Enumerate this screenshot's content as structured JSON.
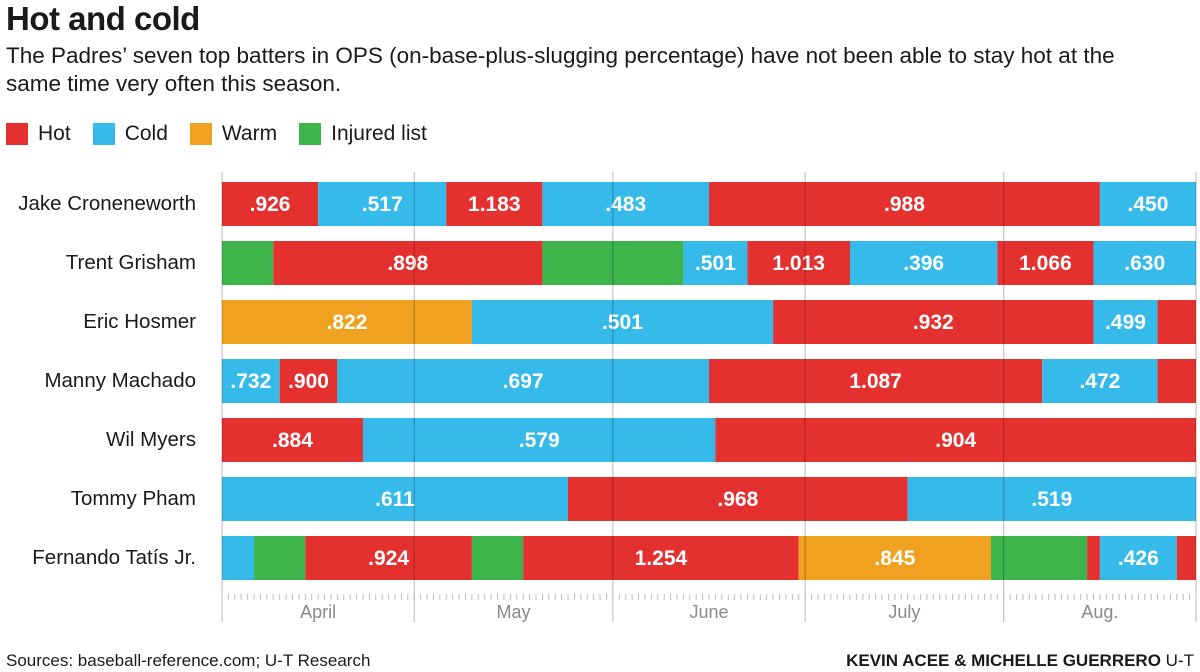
{
  "title": "Hot and cold",
  "subtitle": "The Padres’ seven top batters in OPS (on-base-plus-slugging percentage) have not been able to stay hot at the same time very often this season.",
  "legend": [
    {
      "label": "Hot",
      "color": "#e53030"
    },
    {
      "label": "Cold",
      "color": "#35baea"
    },
    {
      "label": "Warm",
      "color": "#f0a120"
    },
    {
      "label": "Injured list",
      "color": "#3db54a"
    }
  ],
  "source": "Sources: baseball-reference.com; U-T Research",
  "credit": {
    "authors": "KEVIN ACEE & MICHELLE GUERRERO",
    "outlet": "U-T"
  },
  "chart_data": {
    "type": "bar",
    "orientation": "horizontal-stacked-timeline",
    "x_axis_months": [
      "April",
      "May",
      "June",
      "July",
      "Aug."
    ],
    "month_boundaries": [
      0,
      30,
      61,
      91,
      122
    ],
    "x_range_days": [
      0,
      152
    ],
    "colors": {
      "hot": "#e53030",
      "cold": "#35baea",
      "warm": "#f0a120",
      "injured": "#3db54a"
    },
    "players": [
      {
        "name": "Jake Croneneworth",
        "segments": [
          {
            "status": "hot",
            "label": ".926",
            "start": 0,
            "end": 15
          },
          {
            "status": "cold",
            "label": ".517",
            "start": 15,
            "end": 35
          },
          {
            "status": "hot",
            "label": "1.183",
            "start": 35,
            "end": 50
          },
          {
            "status": "cold",
            "label": ".483",
            "start": 50,
            "end": 76
          },
          {
            "status": "hot",
            "label": ".988",
            "start": 76,
            "end": 137
          },
          {
            "status": "cold",
            "label": ".450",
            "start": 137,
            "end": 152
          }
        ]
      },
      {
        "name": "Trent Grisham",
        "segments": [
          {
            "status": "injured",
            "label": "",
            "start": 0,
            "end": 8
          },
          {
            "status": "hot",
            "label": ".898",
            "start": 8,
            "end": 50
          },
          {
            "status": "injured",
            "label": "",
            "start": 50,
            "end": 72
          },
          {
            "status": "cold",
            "label": ".501",
            "start": 72,
            "end": 82
          },
          {
            "status": "hot",
            "label": "1.013",
            "start": 82,
            "end": 98
          },
          {
            "status": "cold",
            "label": ".396",
            "start": 98,
            "end": 121
          },
          {
            "status": "hot",
            "label": "1.066",
            "start": 121,
            "end": 136
          },
          {
            "status": "cold",
            "label": ".630",
            "start": 136,
            "end": 152
          }
        ]
      },
      {
        "name": "Eric Hosmer",
        "segments": [
          {
            "status": "warm",
            "label": ".822",
            "start": 0,
            "end": 39
          },
          {
            "status": "cold",
            "label": ".501",
            "start": 39,
            "end": 86
          },
          {
            "status": "hot",
            "label": ".932",
            "start": 86,
            "end": 136
          },
          {
            "status": "cold",
            "label": ".499",
            "start": 136,
            "end": 146
          },
          {
            "status": "hot",
            "label": "",
            "start": 146,
            "end": 152
          }
        ]
      },
      {
        "name": "Manny Machado",
        "segments": [
          {
            "status": "cold",
            "label": ".732",
            "start": 0,
            "end": 9
          },
          {
            "status": "hot",
            "label": ".900",
            "start": 9,
            "end": 18
          },
          {
            "status": "cold",
            "label": ".697",
            "start": 18,
            "end": 76
          },
          {
            "status": "hot",
            "label": "1.087",
            "start": 76,
            "end": 128
          },
          {
            "status": "cold",
            "label": ".472",
            "start": 128,
            "end": 146
          },
          {
            "status": "hot",
            "label": "",
            "start": 146,
            "end": 152
          }
        ]
      },
      {
        "name": "Wil Myers",
        "segments": [
          {
            "status": "hot",
            "label": ".884",
            "start": 0,
            "end": 22
          },
          {
            "status": "cold",
            "label": ".579",
            "start": 22,
            "end": 77
          },
          {
            "status": "hot",
            "label": ".904",
            "start": 77,
            "end": 152
          }
        ]
      },
      {
        "name": "Tommy Pham",
        "segments": [
          {
            "status": "cold",
            "label": ".611",
            "start": 0,
            "end": 54
          },
          {
            "status": "hot",
            "label": ".968",
            "start": 54,
            "end": 107
          },
          {
            "status": "cold",
            "label": ".519",
            "start": 107,
            "end": 152
          }
        ]
      },
      {
        "name": "Fernando Tatís Jr.",
        "segments": [
          {
            "status": "cold",
            "label": "",
            "start": 0,
            "end": 5
          },
          {
            "status": "injured",
            "label": "",
            "start": 5,
            "end": 13
          },
          {
            "status": "hot",
            "label": ".924",
            "start": 13,
            "end": 39
          },
          {
            "status": "injured",
            "label": "",
            "start": 39,
            "end": 47
          },
          {
            "status": "hot",
            "label": "1.254",
            "start": 47,
            "end": 90
          },
          {
            "status": "warm",
            "label": ".845",
            "start": 90,
            "end": 120
          },
          {
            "status": "injured",
            "label": "",
            "start": 120,
            "end": 135
          },
          {
            "status": "hot",
            "label": "",
            "start": 135,
            "end": 137
          },
          {
            "status": "cold",
            "label": ".426",
            "start": 137,
            "end": 149
          },
          {
            "status": "hot",
            "label": "",
            "start": 149,
            "end": 152
          }
        ]
      }
    ]
  }
}
